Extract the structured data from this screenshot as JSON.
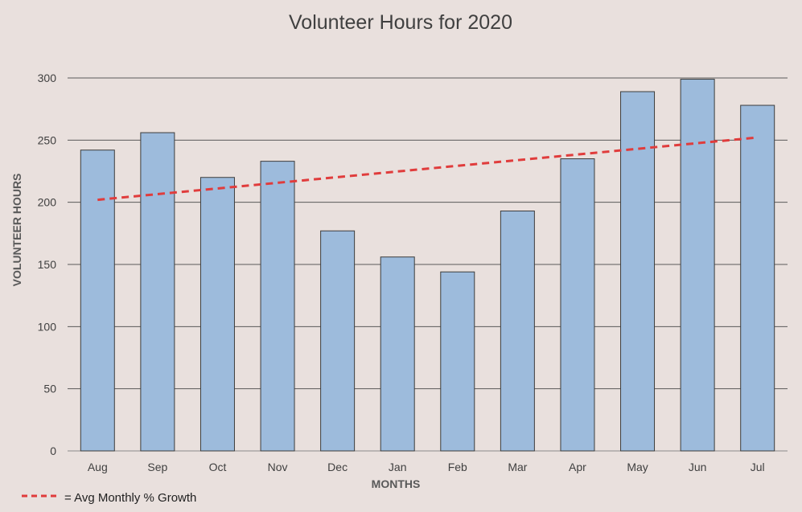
{
  "chart_data": {
    "type": "bar",
    "title": "Volunteer Hours for 2020",
    "xlabel": "MONTHS",
    "ylabel": "VOLUNTEER HOURS",
    "categories": [
      "Aug",
      "Sep",
      "Oct",
      "Nov",
      "Dec",
      "Jan",
      "Feb",
      "Mar",
      "Apr",
      "May",
      "Jun",
      "Jul"
    ],
    "series": [
      {
        "values": [
          242,
          256,
          220,
          233,
          177,
          156,
          144,
          193,
          235,
          289,
          299,
          278
        ],
        "color": "#9dbbdc"
      }
    ],
    "trendline": {
      "label": "= Avg Monthly % Growth",
      "start": 202,
      "end": 252,
      "color": "#e03c3c",
      "style": "dashed"
    },
    "ylim": [
      0,
      300
    ],
    "yticks": [
      0,
      50,
      100,
      150,
      200,
      250,
      300
    ],
    "grid": true,
    "legend_position": "bottom-left"
  }
}
